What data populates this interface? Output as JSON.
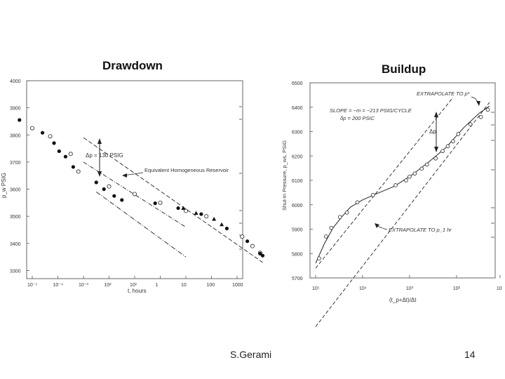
{
  "slide": {
    "title_left": "Drawdown",
    "title_right": "Buildup",
    "footer_author": "S.Gerami",
    "page_number": "14"
  },
  "chart_data": [
    {
      "type": "scatter",
      "xscale": "log",
      "x_tick_labels": [
        "10⁻⁵",
        "10⁻⁴",
        "10⁻³",
        "10²",
        "10¹",
        "1",
        "10",
        "100",
        "1000"
      ],
      "y_ticks": [
        4000,
        3900,
        3800,
        3700,
        3600,
        3500,
        3400,
        3300
      ],
      "xlabel": "t, hours",
      "ylabel": "p_w PSIG",
      "ylim": [
        3270,
        4000
      ],
      "annotations": {
        "delta_p": "Δp = 130 PSIG",
        "reservoir": "Equivalent Homogeneous Reservoir"
      },
      "series_open": [
        [
          0,
          3825
        ],
        [
          0.7,
          3795
        ],
        [
          1.5,
          3730
        ],
        [
          1.8,
          3665
        ],
        [
          3,
          3610
        ],
        [
          4,
          3582
        ],
        [
          5,
          3550
        ],
        [
          6,
          3520
        ],
        [
          6.8,
          3500
        ],
        [
          8.2,
          3425
        ],
        [
          8.6,
          3390
        ],
        [
          8.9,
          3365
        ]
      ],
      "series_filled": [
        [
          -0.5,
          3855
        ],
        [
          0.4,
          3808
        ],
        [
          0.85,
          3770
        ],
        [
          1.05,
          3740
        ],
        [
          1.3,
          3720
        ],
        [
          1.6,
          3682
        ],
        [
          2.5,
          3625
        ],
        [
          2.8,
          3600
        ],
        [
          3.2,
          3575
        ],
        [
          3.5,
          3560
        ],
        [
          4.8,
          3548
        ],
        [
          5.7,
          3530
        ],
        [
          6.6,
          3508
        ],
        [
          7.6,
          3455
        ],
        [
          8.4,
          3408
        ],
        [
          8.9,
          3362
        ],
        [
          9.0,
          3355
        ]
      ],
      "series_triangles": [
        [
          5.9,
          3530
        ],
        [
          6.4,
          3512
        ],
        [
          7.1,
          3490
        ],
        [
          7.4,
          3470
        ]
      ],
      "lines": [
        {
          "name": "upper",
          "x": [
            2,
            9
          ],
          "y": [
            3790,
            3330
          ]
        },
        {
          "name": "dash-dot",
          "x": [
            2,
            6
          ],
          "y": [
            3700,
            3460
          ]
        },
        {
          "name": "lower",
          "x": [
            2.5,
            6
          ],
          "y": [
            3590,
            3350
          ]
        }
      ]
    },
    {
      "type": "line",
      "xscale": "log",
      "x_tick_labels": [
        "10⁵",
        "10⁴",
        "10³",
        "10²",
        "10"
      ],
      "y_ticks": [
        6500,
        6400,
        6300,
        6200,
        6100,
        6000,
        5900,
        5800,
        5700
      ],
      "xlabel": "(t_p+Δt)/Δt",
      "ylabel": "Shut-In Pressure, p_ws, PSIG",
      "ylim": [
        5700,
        6500
      ],
      "annotations": {
        "extrapolate_top": "EXTRAPOLATE TO p*",
        "slope": "SLOPE = −m = −213 PSIG/CYCLE",
        "delta_p": "δp = 200 PSIC",
        "delta_p_mark": "Δp",
        "extrapolate_bottom": "EXTRAPOLATE TO p_1 hr"
      },
      "series_points": [
        [
          0.2,
          5780
        ],
        [
          0.6,
          5870
        ],
        [
          0.9,
          5905
        ],
        [
          1.4,
          5950
        ],
        [
          1.8,
          5968
        ],
        [
          2.4,
          6010
        ],
        [
          3.3,
          6040
        ],
        [
          4.6,
          6080
        ],
        [
          5.2,
          6100
        ],
        [
          5.4,
          6115
        ],
        [
          5.7,
          6128
        ],
        [
          6.1,
          6148
        ],
        [
          6.4,
          6165
        ],
        [
          6.9,
          6190
        ],
        [
          7.3,
          6220
        ],
        [
          7.6,
          6240
        ],
        [
          7.9,
          6260
        ],
        [
          8.2,
          6290
        ],
        [
          8.9,
          6330
        ],
        [
          9.5,
          6360
        ],
        [
          9.9,
          6390
        ]
      ],
      "curve": [
        [
          0,
          5760
        ],
        [
          0.5,
          5840
        ],
        [
          1,
          5905
        ],
        [
          1.5,
          5950
        ],
        [
          2,
          5990
        ],
        [
          2.7,
          6020
        ],
        [
          3.5,
          6045
        ],
        [
          4.5,
          6075
        ],
        [
          5.5,
          6120
        ],
        [
          6.5,
          6175
        ],
        [
          7.5,
          6235
        ],
        [
          8.5,
          6315
        ],
        [
          9.4,
          6375
        ],
        [
          10,
          6405
        ]
      ],
      "lines": [
        {
          "name": "upper-dashed",
          "x": [
            0,
            7.9
          ],
          "y": [
            5740,
            6440
          ]
        },
        {
          "name": "lower-dashed",
          "x": [
            0,
            10
          ],
          "y": [
            5500,
            6420
          ]
        }
      ]
    }
  ]
}
